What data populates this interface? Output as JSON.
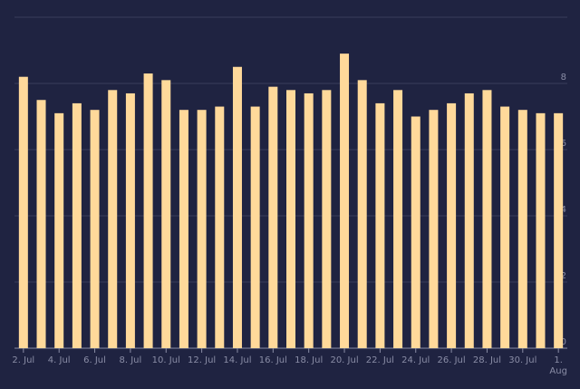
{
  "chart_data": {
    "type": "bar",
    "categories": [
      "2. Jul",
      null,
      "4. Jul",
      null,
      "6. Jul",
      null,
      "8. Jul",
      null,
      "10. Jul",
      null,
      "12. Jul",
      null,
      "14. Jul",
      null,
      "16. Jul",
      null,
      "18. Jul",
      null,
      "20. Jul",
      null,
      "22. Jul",
      null,
      "24. Jul",
      null,
      "26. Jul",
      null,
      "28. Jul",
      null,
      "30. Jul",
      null,
      "1. Aug"
    ],
    "values": [
      8.2,
      7.5,
      7.1,
      7.4,
      7.2,
      7.8,
      7.7,
      8.3,
      8.1,
      7.2,
      7.2,
      7.3,
      8.5,
      7.3,
      7.9,
      7.8,
      7.7,
      7.8,
      8.9,
      8.1,
      7.4,
      7.8,
      7.0,
      7.2,
      7.4,
      7.7,
      7.8,
      7.3,
      7.2,
      7.1,
      7.1
    ],
    "color": "#ffd99a",
    "ylim": [
      0,
      10
    ],
    "yticks": [
      0,
      2,
      4,
      6,
      8
    ],
    "grid": true
  }
}
